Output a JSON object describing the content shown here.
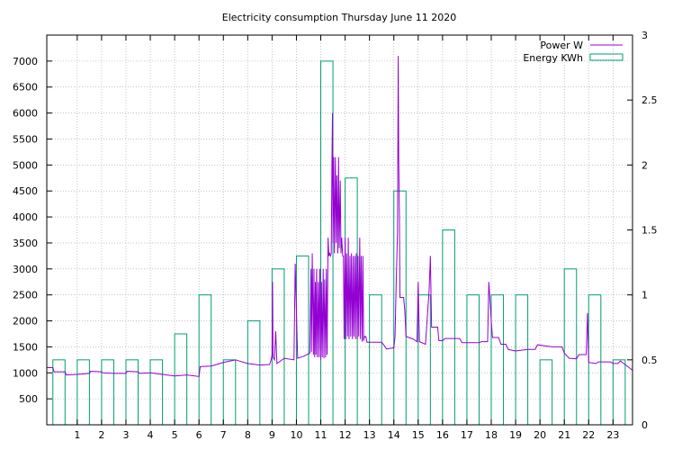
{
  "chart_data": {
    "type": "line",
    "title": "Electricity consumption Thursday June 11 2020",
    "x_ticks": [
      "1",
      "2",
      "3",
      "4",
      "5",
      "6",
      "7",
      "8",
      "9",
      "10",
      "11",
      "12",
      "13",
      "14",
      "15",
      "16",
      "17",
      "18",
      "19",
      "20",
      "21",
      "22",
      "23"
    ],
    "xlim": [
      -0.25,
      23.8
    ],
    "y_left": {
      "lim": [
        0,
        7500
      ],
      "ticks": [
        "500",
        "1000",
        "1500",
        "2000",
        "2500",
        "3000",
        "3500",
        "4000",
        "4500",
        "5000",
        "5500",
        "6000",
        "6500",
        "7000"
      ]
    },
    "y_right": {
      "lim": [
        0,
        3
      ],
      "ticks": [
        "0",
        "0.5",
        "1",
        "1.5",
        "2",
        "2.5",
        "3"
      ]
    },
    "grid": true,
    "legend": {
      "position": "top-right"
    },
    "series": [
      {
        "name": "Power W",
        "axis": "left",
        "style": "line",
        "color": "#9400d3",
        "points": [
          [
            -0.25,
            1100
          ],
          [
            0,
            1100
          ],
          [
            0.05,
            1020
          ],
          [
            0.5,
            1020
          ],
          [
            0.55,
            960
          ],
          [
            1.0,
            970
          ],
          [
            1.5,
            990
          ],
          [
            1.55,
            1030
          ],
          [
            2.0,
            1020
          ],
          [
            2.05,
            1000
          ],
          [
            2.5,
            990
          ],
          [
            3.0,
            990
          ],
          [
            3.05,
            1030
          ],
          [
            3.5,
            1020
          ],
          [
            3.55,
            990
          ],
          [
            4.0,
            1000
          ],
          [
            4.5,
            970
          ],
          [
            5.0,
            940
          ],
          [
            5.5,
            960
          ],
          [
            6.0,
            930
          ],
          [
            6.05,
            1120
          ],
          [
            6.5,
            1130
          ],
          [
            7.0,
            1200
          ],
          [
            7.5,
            1250
          ],
          [
            8.0,
            1180
          ],
          [
            8.5,
            1150
          ],
          [
            8.9,
            1160
          ],
          [
            8.95,
            1230
          ],
          [
            9.0,
            1350
          ],
          [
            9.02,
            2750
          ],
          [
            9.04,
            1300
          ],
          [
            9.1,
            1250
          ],
          [
            9.15,
            1800
          ],
          [
            9.2,
            1180
          ],
          [
            9.5,
            1280
          ],
          [
            9.9,
            1250
          ],
          [
            9.95,
            3100
          ],
          [
            10.0,
            2200
          ],
          [
            10.05,
            1280
          ],
          [
            10.3,
            1320
          ],
          [
            10.55,
            1380
          ],
          [
            10.6,
            3000
          ],
          [
            10.62,
            1400
          ],
          [
            10.65,
            3300
          ],
          [
            10.7,
            1350
          ],
          [
            10.72,
            3000
          ],
          [
            10.75,
            1300
          ],
          [
            10.78,
            2750
          ],
          [
            10.8,
            1350
          ],
          [
            10.83,
            3000
          ],
          [
            10.86,
            1300
          ],
          [
            10.9,
            2750
          ],
          [
            10.93,
            1300
          ],
          [
            10.96,
            3000
          ],
          [
            11.0,
            1250
          ],
          [
            11.03,
            2750
          ],
          [
            11.06,
            1300
          ],
          [
            11.1,
            3000
          ],
          [
            11.13,
            1280
          ],
          [
            11.16,
            2800
          ],
          [
            11.2,
            1300
          ],
          [
            11.23,
            3000
          ],
          [
            11.26,
            1350
          ],
          [
            11.3,
            3600
          ],
          [
            11.33,
            3250
          ],
          [
            11.36,
            3300
          ],
          [
            11.4,
            3250
          ],
          [
            11.43,
            3300
          ],
          [
            11.46,
            5100
          ],
          [
            11.48,
            6000
          ],
          [
            11.5,
            3500
          ],
          [
            11.53,
            5150
          ],
          [
            11.56,
            3300
          ],
          [
            11.6,
            5150
          ],
          [
            11.63,
            3500
          ],
          [
            11.66,
            4800
          ],
          [
            11.7,
            3300
          ],
          [
            11.73,
            5150
          ],
          [
            11.76,
            3400
          ],
          [
            11.8,
            4700
          ],
          [
            11.83,
            3300
          ],
          [
            11.86,
            3600
          ],
          [
            11.9,
            3250
          ],
          [
            11.93,
            3250
          ],
          [
            11.96,
            1650
          ],
          [
            12.0,
            3600
          ],
          [
            12.03,
            1650
          ],
          [
            12.06,
            3300
          ],
          [
            12.1,
            1700
          ],
          [
            12.13,
            3600
          ],
          [
            12.16,
            1650
          ],
          [
            12.2,
            3250
          ],
          [
            12.23,
            1700
          ],
          [
            12.26,
            3300
          ],
          [
            12.3,
            1650
          ],
          [
            12.33,
            3250
          ],
          [
            12.36,
            1700
          ],
          [
            12.4,
            3250
          ],
          [
            12.43,
            1650
          ],
          [
            12.46,
            3300
          ],
          [
            12.5,
            1650
          ],
          [
            12.53,
            3250
          ],
          [
            12.56,
            1700
          ],
          [
            12.6,
            3600
          ],
          [
            12.63,
            1650
          ],
          [
            12.66,
            3250
          ],
          [
            12.7,
            1600
          ],
          [
            12.73,
            3250
          ],
          [
            12.76,
            1620
          ],
          [
            12.8,
            1700
          ],
          [
            12.85,
            1700
          ],
          [
            12.9,
            1590
          ],
          [
            13.5,
            1590
          ],
          [
            13.7,
            1460
          ],
          [
            14.0,
            1480
          ],
          [
            14.05,
            1700
          ],
          [
            14.1,
            2800
          ],
          [
            14.15,
            3700
          ],
          [
            14.18,
            7100
          ],
          [
            14.2,
            5150
          ],
          [
            14.23,
            4000
          ],
          [
            14.25,
            2450
          ],
          [
            14.4,
            2450
          ],
          [
            14.45,
            2200
          ],
          [
            14.5,
            1700
          ],
          [
            14.8,
            1650
          ],
          [
            14.95,
            1600
          ],
          [
            15.0,
            2750
          ],
          [
            15.05,
            1600
          ],
          [
            15.3,
            1550
          ],
          [
            15.45,
            2600
          ],
          [
            15.5,
            3250
          ],
          [
            15.55,
            1880
          ],
          [
            15.8,
            1880
          ],
          [
            15.85,
            1620
          ],
          [
            16.0,
            1620
          ],
          [
            16.1,
            1660
          ],
          [
            16.7,
            1660
          ],
          [
            16.8,
            1580
          ],
          [
            17.5,
            1580
          ],
          [
            17.6,
            1600
          ],
          [
            17.85,
            1600
          ],
          [
            17.9,
            2750
          ],
          [
            18.0,
            2000
          ],
          [
            18.05,
            1680
          ],
          [
            18.3,
            1680
          ],
          [
            18.4,
            1550
          ],
          [
            18.6,
            1550
          ],
          [
            18.7,
            1450
          ],
          [
            19.0,
            1420
          ],
          [
            19.5,
            1450
          ],
          [
            19.8,
            1450
          ],
          [
            19.9,
            1540
          ],
          [
            20.5,
            1500
          ],
          [
            20.9,
            1500
          ],
          [
            21.0,
            1380
          ],
          [
            21.2,
            1280
          ],
          [
            21.5,
            1270
          ],
          [
            21.6,
            1350
          ],
          [
            21.9,
            1350
          ],
          [
            21.95,
            2150
          ],
          [
            22.0,
            1200
          ],
          [
            22.3,
            1180
          ],
          [
            22.4,
            1210
          ],
          [
            22.9,
            1210
          ],
          [
            23.0,
            1180
          ],
          [
            23.2,
            1180
          ],
          [
            23.3,
            1230
          ],
          [
            23.8,
            1050
          ]
        ]
      },
      {
        "name": "Energy KWh",
        "axis": "right",
        "style": "bars",
        "color": "#009e73",
        "bars": [
          [
            0,
            0.5
          ],
          [
            1,
            0.5
          ],
          [
            2,
            0.5
          ],
          [
            3,
            0.5
          ],
          [
            4,
            0.5
          ],
          [
            5,
            0.7
          ],
          [
            6,
            1.0
          ],
          [
            7,
            0.5
          ],
          [
            8,
            0.8
          ],
          [
            9,
            1.2
          ],
          [
            10,
            1.3
          ],
          [
            11,
            2.8
          ],
          [
            12,
            1.9
          ],
          [
            13,
            1.0
          ],
          [
            14,
            1.8
          ],
          [
            15,
            1.0
          ],
          [
            16,
            1.5
          ],
          [
            17,
            1.0
          ],
          [
            18,
            1.0
          ],
          [
            19,
            1.0
          ],
          [
            20,
            0.5
          ],
          [
            21,
            1.2
          ],
          [
            22,
            1.0
          ],
          [
            23,
            0.5
          ]
        ]
      }
    ]
  }
}
